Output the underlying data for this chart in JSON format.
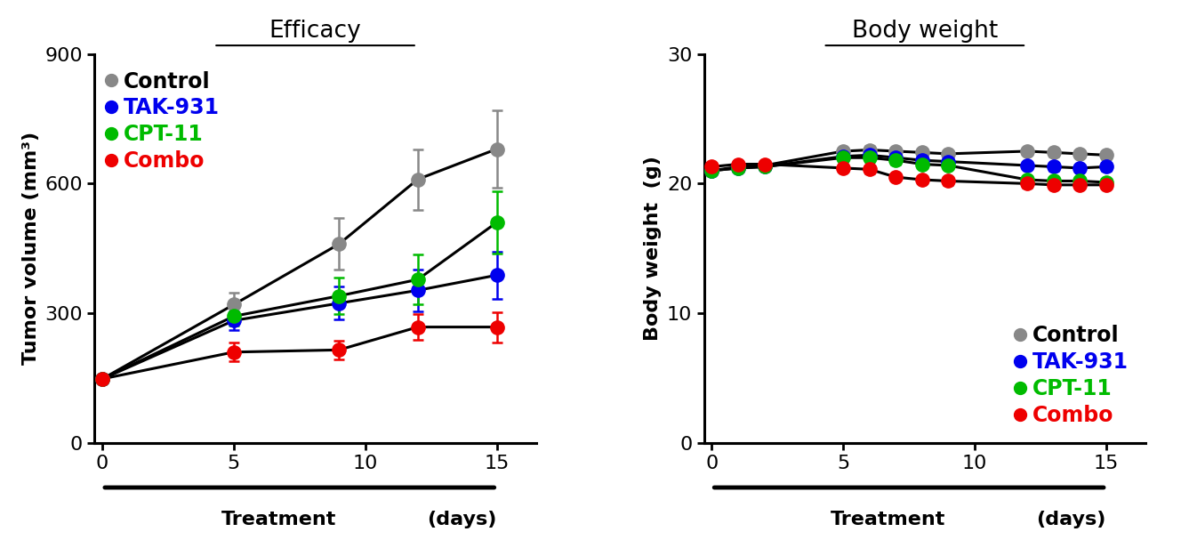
{
  "efficacy": {
    "title": "Efficacy",
    "ylabel": "Tumor volume (mm³)",
    "xlim": [
      -0.3,
      16.5
    ],
    "ylim": [
      0,
      900
    ],
    "yticks": [
      0,
      300,
      600,
      900
    ],
    "xticks": [
      0,
      5,
      10,
      15
    ],
    "days": [
      0,
      5,
      9,
      12,
      15
    ],
    "series": {
      "Control": {
        "dot_color": "#888888",
        "values": [
          148,
          320,
          460,
          610,
          680
        ],
        "errors": [
          8,
          28,
          60,
          70,
          90
        ]
      },
      "TAK-931": {
        "dot_color": "#0000ee",
        "values": [
          148,
          283,
          323,
          353,
          388
        ],
        "errors": [
          8,
          22,
          38,
          48,
          55
        ]
      },
      "CPT-11": {
        "dot_color": "#00bb00",
        "values": [
          148,
          293,
          340,
          378,
          510
        ],
        "errors": [
          8,
          22,
          42,
          58,
          72
        ]
      },
      "Combo": {
        "dot_color": "#ee0000",
        "values": [
          148,
          210,
          215,
          268,
          268
        ],
        "errors": [
          8,
          22,
          22,
          30,
          35
        ]
      }
    },
    "legend_order": [
      "Control",
      "TAK-931",
      "CPT-11",
      "Combo"
    ],
    "legend_text_colors": [
      "#000000",
      "#0000ee",
      "#00bb00",
      "#ee0000"
    ],
    "legend_loc": "upper left"
  },
  "bodyweight": {
    "title": "Body weight",
    "ylabel": "Body weight  (g)",
    "xlim": [
      -0.3,
      16.5
    ],
    "ylim": [
      0,
      30
    ],
    "yticks": [
      0,
      10,
      20,
      30
    ],
    "xticks": [
      0,
      5,
      10,
      15
    ],
    "days": [
      0,
      1,
      2,
      5,
      6,
      7,
      8,
      9,
      12,
      13,
      14,
      15
    ],
    "series": {
      "Control": {
        "dot_color": "#888888",
        "values": [
          21.0,
          21.3,
          21.4,
          22.5,
          22.6,
          22.5,
          22.4,
          22.3,
          22.5,
          22.4,
          22.3,
          22.2
        ],
        "errors": [
          0.25,
          0.25,
          0.25,
          0.3,
          0.3,
          0.3,
          0.3,
          0.3,
          0.3,
          0.3,
          0.3,
          0.3
        ]
      },
      "TAK-931": {
        "dot_color": "#0000ee",
        "values": [
          21.0,
          21.2,
          21.3,
          22.1,
          22.2,
          22.0,
          21.8,
          21.7,
          21.4,
          21.3,
          21.2,
          21.3
        ],
        "errors": [
          0.25,
          0.25,
          0.25,
          0.3,
          0.3,
          0.3,
          0.3,
          0.3,
          0.3,
          0.3,
          0.3,
          0.3
        ]
      },
      "CPT-11": {
        "dot_color": "#00bb00",
        "values": [
          21.0,
          21.2,
          21.3,
          22.0,
          22.0,
          21.8,
          21.5,
          21.4,
          20.3,
          20.2,
          20.2,
          20.1
        ],
        "errors": [
          0.25,
          0.25,
          0.25,
          0.3,
          0.3,
          0.3,
          0.3,
          0.3,
          0.3,
          0.3,
          0.3,
          0.3
        ]
      },
      "Combo": {
        "dot_color": "#ee0000",
        "values": [
          21.3,
          21.5,
          21.5,
          21.2,
          21.1,
          20.5,
          20.3,
          20.2,
          20.0,
          19.9,
          19.9,
          19.9
        ],
        "errors": [
          0.25,
          0.25,
          0.25,
          0.3,
          0.3,
          0.3,
          0.3,
          0.3,
          0.3,
          0.3,
          0.3,
          0.3
        ]
      }
    },
    "legend_order": [
      "Control",
      "TAK-931",
      "CPT-11",
      "Combo"
    ],
    "legend_text_colors": [
      "#000000",
      "#0000ee",
      "#00bb00",
      "#ee0000"
    ],
    "legend_loc": "lower right"
  },
  "bg_color": "#ffffff",
  "marker_size": 11,
  "line_width": 2.2,
  "capsize": 4,
  "title_fontsize": 19,
  "label_fontsize": 16,
  "tick_fontsize": 16,
  "legend_fontsize": 17
}
